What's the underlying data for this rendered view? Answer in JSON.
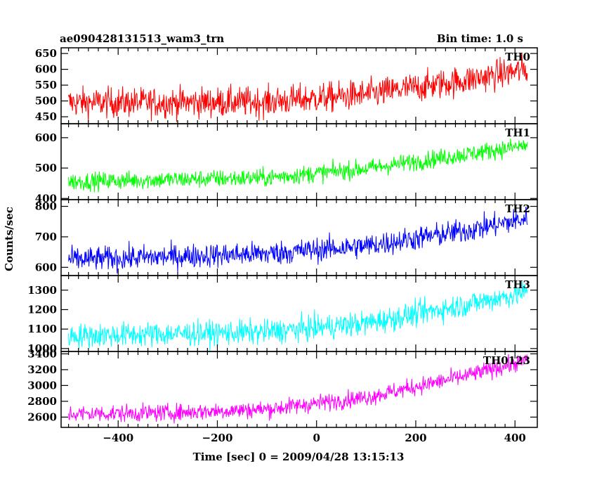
{
  "header": {
    "title": "ae090428131513_wam3_trn",
    "bin_time": "Bin time: 1.0 s"
  },
  "chart_data": {
    "type": "line",
    "xlabel": "Time [sec] 0 = 2009/04/28 13:15:13",
    "ylabel": "Counts/sec",
    "xlim": [
      -515,
      445
    ],
    "x_range": [
      -500,
      425
    ],
    "xticks": [
      -400,
      -200,
      0,
      200,
      400
    ],
    "xtick_labels": [
      "−400",
      "−200",
      "0",
      "200",
      "400"
    ],
    "panels": [
      {
        "name": "TH0",
        "color": "#ff0000",
        "ylim": [
          428,
          668
        ],
        "yticks": [
          450,
          500,
          550,
          600,
          650
        ],
        "trend": [
          [
            -500,
            495
          ],
          [
            -300,
            495
          ],
          [
            -100,
            497
          ],
          [
            100,
            520
          ],
          [
            300,
            565
          ],
          [
            425,
            600
          ]
        ],
        "noise": 24
      },
      {
        "name": "TH1",
        "color": "#00ff00",
        "ylim": [
          396,
          646
        ],
        "yticks": [
          400,
          500,
          600
        ],
        "trend": [
          [
            -500,
            455
          ],
          [
            -300,
            462
          ],
          [
            -100,
            468
          ],
          [
            100,
            498
          ],
          [
            300,
            545
          ],
          [
            425,
            575
          ]
        ],
        "noise": 15
      },
      {
        "name": "TH2",
        "color": "#0000ff",
        "ylim": [
          573,
          822
        ],
        "yticks": [
          600,
          700,
          800
        ],
        "trend": [
          [
            -500,
            625
          ],
          [
            -300,
            635
          ],
          [
            -100,
            645
          ],
          [
            100,
            670
          ],
          [
            300,
            720
          ],
          [
            425,
            760
          ]
        ],
        "noise": 20
      },
      {
        "name": "TH3",
        "color": "#00ffff",
        "ylim": [
          985,
          1375
        ],
        "yticks": [
          1000,
          1100,
          1200,
          1300
        ],
        "trend": [
          [
            -500,
            1065
          ],
          [
            -300,
            1075
          ],
          [
            -100,
            1085
          ],
          [
            100,
            1130
          ],
          [
            300,
            1225
          ],
          [
            425,
            1290
          ]
        ],
        "noise": 32
      },
      {
        "name": "TH0123",
        "color": "#ff00ff",
        "ylim": [
          2470,
          3430
        ],
        "yticks": [
          2600,
          2800,
          3000,
          3200,
          3400
        ],
        "trend": [
          [
            -500,
            2640
          ],
          [
            -300,
            2655
          ],
          [
            -100,
            2700
          ],
          [
            100,
            2850
          ],
          [
            300,
            3120
          ],
          [
            425,
            3320
          ]
        ],
        "noise": 55
      }
    ]
  }
}
